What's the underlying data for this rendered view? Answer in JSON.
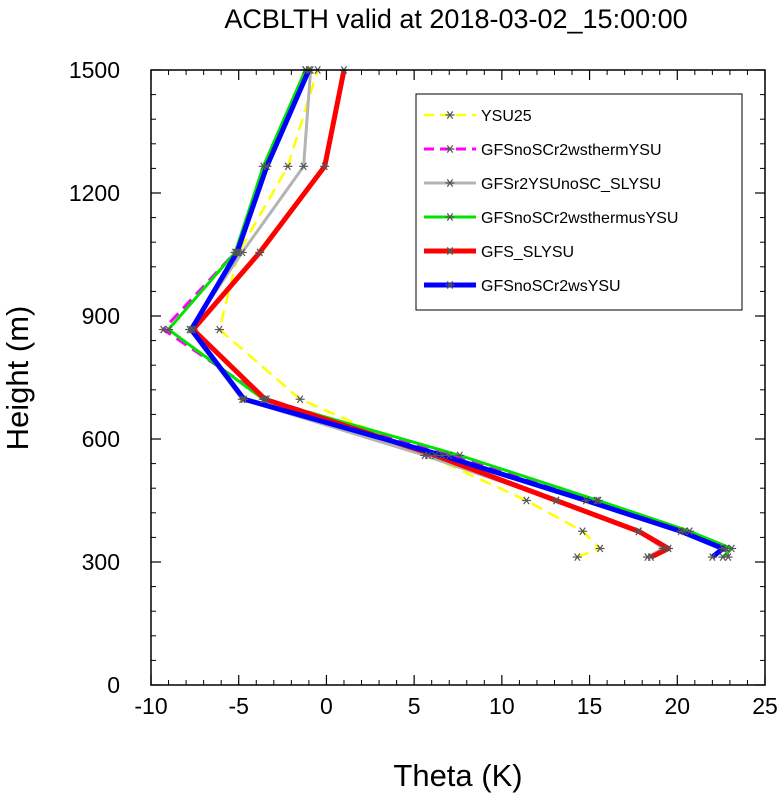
{
  "chart_data": {
    "type": "line",
    "title": "ACBLTH valid at 2018-03-02_15:00:00",
    "xlabel": "Theta (K)",
    "ylabel": "Height (m)",
    "xlim": [
      -10,
      25
    ],
    "ylim": [
      0,
      1500
    ],
    "x_ticks": [
      "-10",
      "-5",
      "0",
      "5",
      "10",
      "15",
      "20",
      "25"
    ],
    "y_ticks": [
      "0",
      "300",
      "600",
      "900",
      "1200",
      "1500"
    ],
    "legend_position": "top-right",
    "series": [
      {
        "name": "YSU25",
        "color": "#ffff00",
        "dash": "dashed",
        "marker": "asterisk",
        "points": [
          [
            14.3,
            312
          ],
          [
            15.6,
            333
          ],
          [
            14.6,
            375
          ],
          [
            11.4,
            450
          ],
          [
            5.8,
            560
          ],
          [
            -1.5,
            697
          ],
          [
            -6.1,
            867
          ],
          [
            -5.0,
            1055
          ],
          [
            -2.2,
            1265
          ],
          [
            -0.5,
            1500
          ]
        ]
      },
      {
        "name": "GFSnoSCr2wsthermYSU",
        "color": "#ff00ff",
        "dash": "dashed",
        "marker": "asterisk",
        "points": [
          [
            22.9,
            312
          ],
          [
            22.8,
            333
          ],
          [
            20.4,
            375
          ],
          [
            15.4,
            450
          ],
          [
            7.0,
            560
          ],
          [
            -3.4,
            697
          ],
          [
            -9.3,
            867
          ],
          [
            -5.2,
            1055
          ],
          [
            -3.4,
            1265
          ],
          [
            -1.2,
            1500
          ]
        ]
      },
      {
        "name": "GFSr2YSUnoSC_SLYSU",
        "color": "#b4b4b4",
        "dash": "solid",
        "marker": "asterisk",
        "points": [
          [
            18.3,
            312
          ],
          [
            19.2,
            333
          ],
          [
            17.8,
            375
          ],
          [
            13.1,
            450
          ],
          [
            5.6,
            560
          ],
          [
            -4.8,
            697
          ],
          [
            -7.8,
            867
          ],
          [
            -4.8,
            1055
          ],
          [
            -1.3,
            1265
          ],
          [
            -0.9,
            1500
          ]
        ]
      },
      {
        "name": "GFSnoSCr2wsthermusYSU",
        "color": "#00e400",
        "dash": "solid",
        "marker": "asterisk",
        "points": [
          [
            22.6,
            312
          ],
          [
            23.1,
            333
          ],
          [
            20.7,
            375
          ],
          [
            15.5,
            450
          ],
          [
            7.6,
            560
          ],
          [
            -3.6,
            697
          ],
          [
            -9.0,
            867
          ],
          [
            -5.2,
            1055
          ],
          [
            -3.6,
            1265
          ],
          [
            -1.2,
            1500
          ]
        ]
      },
      {
        "name": "GFS_SLYSU",
        "color": "#ff0000",
        "dash": "solid",
        "marker": "asterisk",
        "points": [
          [
            18.5,
            312
          ],
          [
            19.5,
            333
          ],
          [
            17.8,
            375
          ],
          [
            13.1,
            450
          ],
          [
            6.2,
            560
          ],
          [
            -3.5,
            697
          ],
          [
            -7.6,
            867
          ],
          [
            -3.8,
            1055
          ],
          [
            -0.1,
            1265
          ],
          [
            1.0,
            1500
          ]
        ]
      },
      {
        "name": "GFSnoSCr2wsYSU",
        "color": "#0000ff",
        "dash": "solid",
        "marker": "asterisk",
        "points": [
          [
            22.0,
            312
          ],
          [
            22.6,
            333
          ],
          [
            20.2,
            375
          ],
          [
            14.8,
            450
          ],
          [
            6.6,
            560
          ],
          [
            -4.7,
            697
          ],
          [
            -7.7,
            867
          ],
          [
            -5.1,
            1055
          ],
          [
            -3.4,
            1265
          ],
          [
            -1.0,
            1500
          ]
        ]
      }
    ]
  }
}
